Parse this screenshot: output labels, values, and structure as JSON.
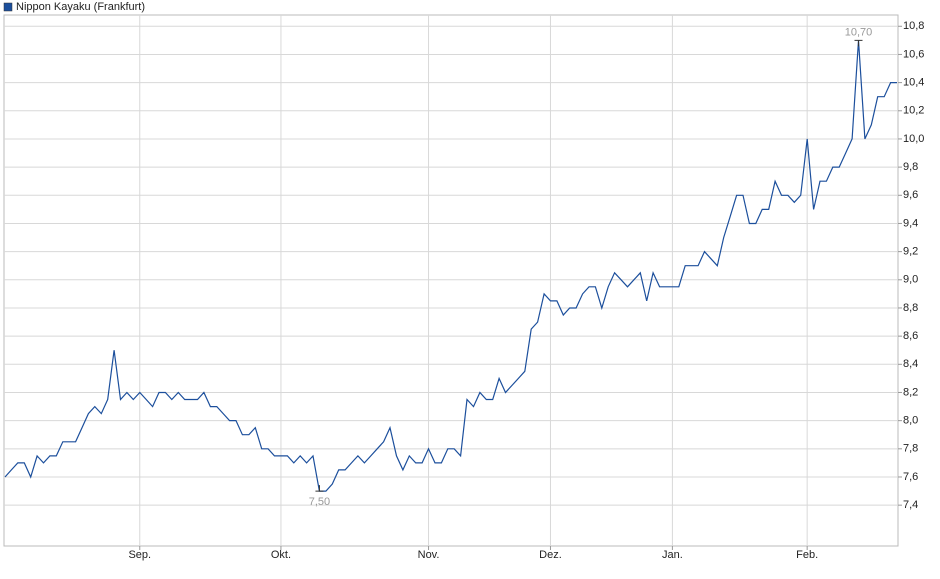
{
  "chart_data": {
    "type": "line",
    "series": [
      {
        "name": "Nippon Kayaku (Frankfurt)",
        "color": "#1c4f9c",
        "values": [
          7.6,
          7.65,
          7.7,
          7.7,
          7.6,
          7.75,
          7.7,
          7.75,
          7.75,
          7.85,
          7.85,
          7.85,
          7.95,
          8.05,
          8.1,
          8.05,
          8.15,
          8.5,
          8.15,
          8.2,
          8.15,
          8.2,
          8.15,
          8.1,
          8.2,
          8.2,
          8.15,
          8.2,
          8.15,
          8.15,
          8.15,
          8.2,
          8.1,
          8.1,
          8.05,
          8.0,
          8.0,
          7.9,
          7.9,
          7.95,
          7.8,
          7.8,
          7.75,
          7.75,
          7.75,
          7.7,
          7.75,
          7.7,
          7.75,
          7.5,
          7.5,
          7.55,
          7.65,
          7.65,
          7.7,
          7.75,
          7.7,
          7.75,
          7.8,
          7.85,
          7.95,
          7.75,
          7.65,
          7.75,
          7.7,
          7.7,
          7.8,
          7.7,
          7.7,
          7.8,
          7.8,
          7.75,
          8.15,
          8.1,
          8.2,
          8.15,
          8.15,
          8.3,
          8.2,
          8.25,
          8.3,
          8.35,
          8.65,
          8.7,
          8.9,
          8.85,
          8.85,
          8.75,
          8.8,
          8.8,
          8.9,
          8.95,
          8.95,
          8.8,
          8.95,
          9.05,
          9.0,
          8.95,
          9.0,
          9.05,
          8.85,
          9.05,
          8.95,
          8.95,
          8.95,
          8.95,
          9.1,
          9.1,
          9.1,
          9.2,
          9.15,
          9.1,
          9.3,
          9.45,
          9.6,
          9.6,
          9.4,
          9.4,
          9.5,
          9.5,
          9.7,
          9.6,
          9.6,
          9.55,
          9.6,
          10.0,
          9.5,
          9.7,
          9.7,
          9.8,
          9.8,
          9.9,
          10.0,
          10.7,
          10.0,
          10.1,
          10.3,
          10.3,
          10.4,
          10.4
        ]
      }
    ],
    "categories": [
      null,
      null,
      null,
      null,
      null,
      null,
      null,
      null,
      null,
      null,
      null,
      null,
      null,
      null,
      null,
      null,
      null,
      null,
      null,
      null,
      null,
      "Sep.",
      null,
      null,
      null,
      null,
      null,
      null,
      null,
      null,
      null,
      null,
      null,
      null,
      null,
      null,
      null,
      null,
      null,
      null,
      null,
      null,
      null,
      "Okt.",
      null,
      null,
      null,
      null,
      null,
      null,
      null,
      null,
      null,
      null,
      null,
      null,
      null,
      null,
      null,
      null,
      null,
      null,
      null,
      null,
      null,
      null,
      "Nov.",
      null,
      null,
      null,
      null,
      null,
      null,
      null,
      null,
      null,
      null,
      null,
      null,
      null,
      null,
      null,
      null,
      null,
      null,
      "Dez.",
      null,
      null,
      null,
      null,
      null,
      null,
      null,
      null,
      null,
      null,
      null,
      null,
      null,
      null,
      null,
      null,
      null,
      null,
      "Jan.",
      null,
      null,
      null,
      null,
      null,
      null,
      null,
      null,
      null,
      null,
      null,
      null,
      null,
      null,
      null,
      null,
      null,
      null,
      null,
      null,
      "Feb.",
      null,
      null,
      null,
      null,
      null,
      null,
      null,
      null,
      null,
      null,
      null,
      null,
      null,
      null
    ],
    "high_label": "10,70",
    "low_label": "7,50",
    "ylim": [
      7.11,
      10.88
    ],
    "yticks": [
      {
        "value": 7.4,
        "label": "7,4"
      },
      {
        "value": 7.6,
        "label": "7,6"
      },
      {
        "value": 7.8,
        "label": "7,8"
      },
      {
        "value": 8.0,
        "label": "8,0"
      },
      {
        "value": 8.2,
        "label": "8,2"
      },
      {
        "value": 8.4,
        "label": "8,4"
      },
      {
        "value": 8.6,
        "label": "8,6"
      },
      {
        "value": 8.8,
        "label": "8,8"
      },
      {
        "value": 9.0,
        "label": "9,0"
      },
      {
        "value": 9.2,
        "label": "9,2"
      },
      {
        "value": 9.4,
        "label": "9,4"
      },
      {
        "value": 9.6,
        "label": "9,6"
      },
      {
        "value": 9.8,
        "label": "9,8"
      },
      {
        "value": 10.0,
        "label": "10,0"
      },
      {
        "value": 10.2,
        "label": "10,2"
      },
      {
        "value": 10.4,
        "label": "10,4"
      },
      {
        "value": 10.6,
        "label": "10,6"
      },
      {
        "value": 10.8,
        "label": "10,8"
      }
    ],
    "grid": true
  }
}
